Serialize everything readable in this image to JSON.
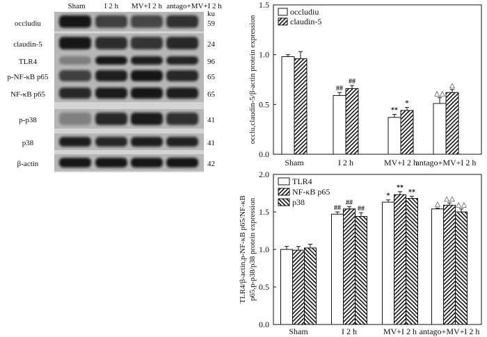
{
  "blot": {
    "lanes": [
      "Sham",
      "I 2 h",
      "MV+I 2 h",
      "antago+MV+I 2 h"
    ],
    "unit": "ku",
    "rows": [
      {
        "label": "occludiu",
        "ku": "59",
        "band_intensity": [
          0.95,
          0.72,
          0.68,
          0.8
        ]
      },
      {
        "label": "claudin-5",
        "ku": "24",
        "band_intensity": [
          0.95,
          0.82,
          0.78,
          0.85
        ]
      },
      {
        "label": "TLR4",
        "ku": "96",
        "band_intensity": [
          0.3,
          0.95,
          0.9,
          0.88
        ]
      },
      {
        "label": "p-NF-κB p65",
        "ku": "65",
        "band_intensity": [
          0.72,
          0.9,
          0.95,
          0.85
        ]
      },
      {
        "label": "NF-κB p65",
        "ku": "65",
        "band_intensity": [
          0.85,
          0.92,
          0.95,
          0.9
        ]
      },
      {
        "label": "p-p38",
        "ku": "41",
        "band_intensity": [
          0.35,
          0.85,
          0.92,
          0.8
        ]
      },
      {
        "label": "p38",
        "ku": "41",
        "band_intensity": [
          0.9,
          0.85,
          0.9,
          0.88
        ]
      },
      {
        "label": "β-actin",
        "ku": "42",
        "band_intensity": [
          0.95,
          0.95,
          0.95,
          0.95
        ]
      }
    ]
  },
  "chart_data": [
    {
      "type": "bar",
      "categories": [
        "Sham",
        "I 2 h",
        "MV+I 2 h",
        "antago+MV+I 2 h"
      ],
      "ylabel_lines": [
        "occlu,claudin-5/β-actin protein expression"
      ],
      "ylim": [
        0,
        1.5
      ],
      "yticks": [
        "0.0",
        "0.5",
        "1.0",
        "1.5"
      ],
      "grid": false,
      "legend": "top-left",
      "series": [
        {
          "name": "occludiu",
          "values": [
            0.98,
            0.59,
            0.37,
            0.51
          ],
          "errors": [
            0.02,
            0.03,
            0.03,
            0.06
          ],
          "marks": [
            "",
            "##",
            "**",
            "△△"
          ]
        },
        {
          "name": "claudin-5",
          "values": [
            0.96,
            0.66,
            0.44,
            0.62
          ],
          "errors": [
            0.07,
            0.03,
            0.03,
            0.03
          ],
          "marks": [
            "",
            "##",
            "*",
            "△"
          ]
        }
      ]
    },
    {
      "type": "bar",
      "categories": [
        "Sham",
        "I 2 h",
        "MV+I 2 h",
        "antago+MV+I 2 h"
      ],
      "ylabel_lines": [
        "TLR4/β-actin,p-NF-κB p65/NF-κB",
        "p65,p-p38/p38 protein expression"
      ],
      "ylim": [
        0,
        2.0
      ],
      "yticks": [
        "0.0",
        "0.5",
        "1.0",
        "1.5",
        "2.0"
      ],
      "grid": false,
      "legend": "top-left",
      "series": [
        {
          "name": "TLR4",
          "values": [
            1.0,
            1.47,
            1.63,
            1.54
          ],
          "errors": [
            0.04,
            0.03,
            0.03,
            0.01
          ],
          "marks": [
            "",
            "##",
            "*",
            "△"
          ]
        },
        {
          "name": "NF-κB p65",
          "values": [
            0.99,
            1.54,
            1.73,
            1.59
          ],
          "errors": [
            0.05,
            0.03,
            0.04,
            0.03
          ],
          "marks": [
            "",
            "##",
            "**",
            "△△"
          ]
        },
        {
          "name": "p38",
          "values": [
            1.02,
            1.44,
            1.68,
            1.5
          ],
          "errors": [
            0.05,
            0.05,
            0.03,
            0.04
          ],
          "marks": [
            "",
            "##",
            "**",
            "△△"
          ]
        }
      ]
    }
  ]
}
